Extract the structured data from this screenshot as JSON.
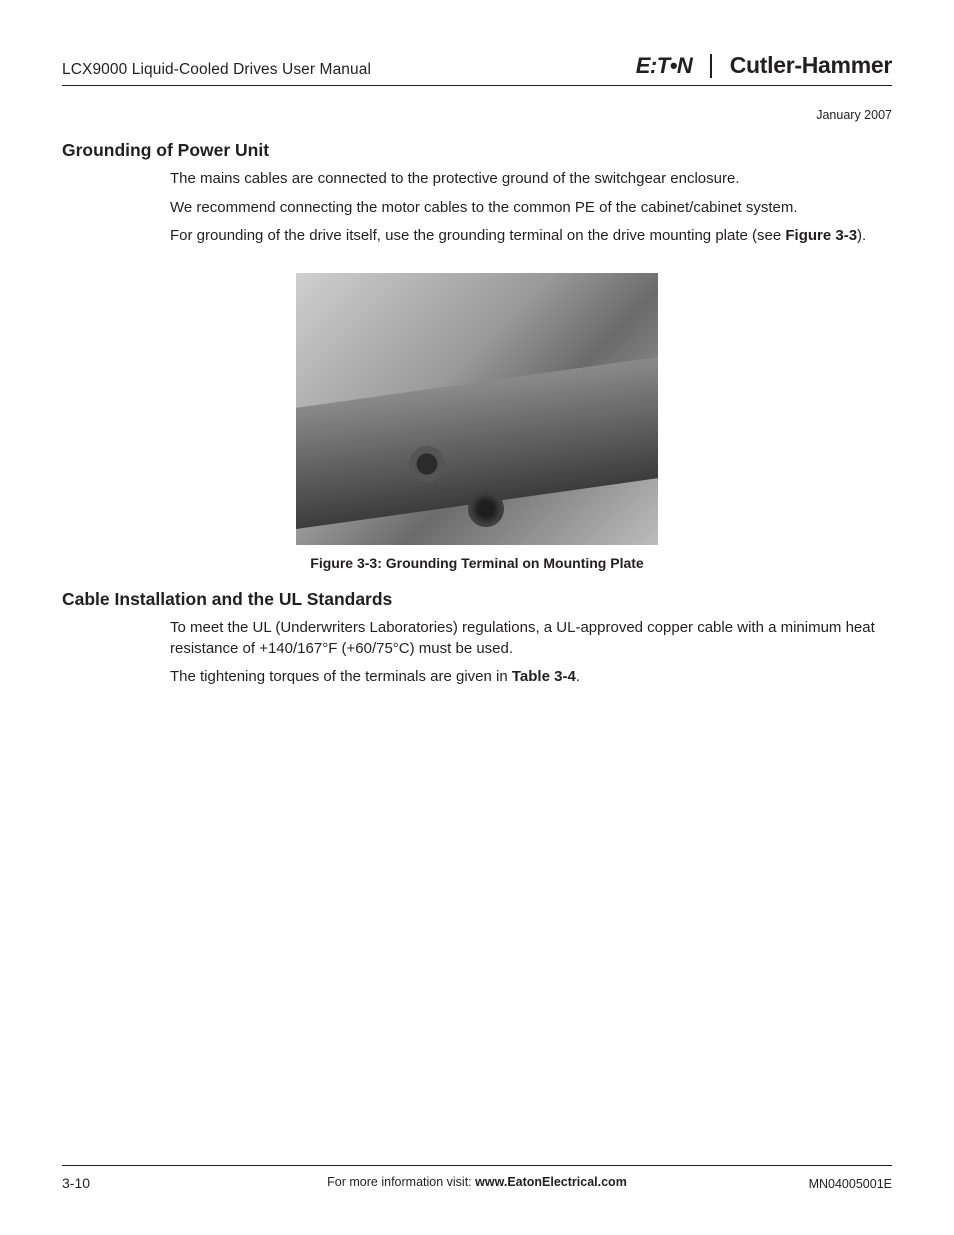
{
  "header": {
    "manual_title": "LCX9000 Liquid-Cooled Drives User Manual",
    "brand_left": "E:T•N",
    "brand_right": "Cutler-Hammer"
  },
  "date": "January 2007",
  "section1": {
    "heading": "Grounding of Power Unit",
    "p1": "The mains cables are connected to the protective ground of the switchgear enclosure.",
    "p2": "We recommend connecting the motor cables to the common PE of the cabinet/cabinet system.",
    "p3a": "For grounding of the drive itself, use the grounding terminal on the drive mounting plate (see ",
    "p3b": "Figure 3-3",
    "p3c": ")."
  },
  "figure": {
    "caption": "Figure 3-3: Grounding Terminal on Mounting Plate"
  },
  "section2": {
    "heading": "Cable Installation and the UL Standards",
    "p1": "To meet the UL (Underwriters Laboratories) regulations, a UL-approved copper cable with a minimum heat resistance of +140/167°F (+60/75°C) must be used.",
    "p2a": "The tightening torques of the terminals are given in ",
    "p2b": "Table 3-4",
    "p2c": "."
  },
  "footer": {
    "page": "3-10",
    "center_pre": "For more information visit: ",
    "center_bold": "www.EatonElectrical.com",
    "doc_id": "MN04005001E"
  }
}
